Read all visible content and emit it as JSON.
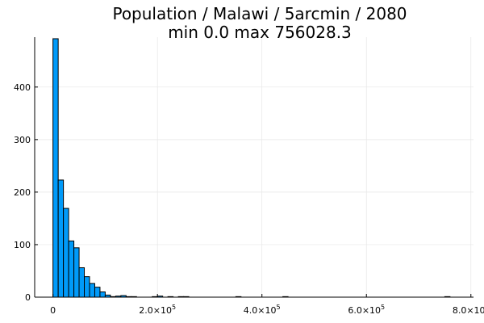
{
  "chart_data": {
    "type": "bar",
    "title": "Population / Malawi / 5arcmin / 2080",
    "subtitle": "min 0.0  max 756028.3",
    "xlabel": "",
    "ylabel": "",
    "bin_width": 10000,
    "xlim": [
      -35000,
      805000
    ],
    "ylim": [
      0,
      495
    ],
    "x_ticks": [
      {
        "value": 0,
        "mantissa": "0",
        "exponent": ""
      },
      {
        "value": 200000,
        "mantissa": "2.0×10",
        "exponent": "5"
      },
      {
        "value": 400000,
        "mantissa": "4.0×10",
        "exponent": "5"
      },
      {
        "value": 600000,
        "mantissa": "6.0×10",
        "exponent": "5"
      },
      {
        "value": 800000,
        "mantissa": "8.0×10",
        "exponent": "5"
      }
    ],
    "y_ticks": [
      0,
      100,
      200,
      300,
      400
    ],
    "grid": true,
    "legend": "none",
    "bar_color": "#009AF9",
    "bins": [
      {
        "x0": 0,
        "count": 492
      },
      {
        "x0": 10000,
        "count": 223
      },
      {
        "x0": 20000,
        "count": 169
      },
      {
        "x0": 30000,
        "count": 107
      },
      {
        "x0": 40000,
        "count": 94
      },
      {
        "x0": 50000,
        "count": 56
      },
      {
        "x0": 60000,
        "count": 39
      },
      {
        "x0": 70000,
        "count": 26
      },
      {
        "x0": 80000,
        "count": 19
      },
      {
        "x0": 90000,
        "count": 10
      },
      {
        "x0": 100000,
        "count": 4
      },
      {
        "x0": 110000,
        "count": 1
      },
      {
        "x0": 120000,
        "count": 2
      },
      {
        "x0": 130000,
        "count": 3
      },
      {
        "x0": 140000,
        "count": 1
      },
      {
        "x0": 150000,
        "count": 1
      },
      {
        "x0": 190000,
        "count": 1
      },
      {
        "x0": 200000,
        "count": 2
      },
      {
        "x0": 220000,
        "count": 1
      },
      {
        "x0": 240000,
        "count": 1
      },
      {
        "x0": 250000,
        "count": 1
      },
      {
        "x0": 350000,
        "count": 1
      },
      {
        "x0": 440000,
        "count": 1
      },
      {
        "x0": 750000,
        "count": 1
      }
    ]
  }
}
